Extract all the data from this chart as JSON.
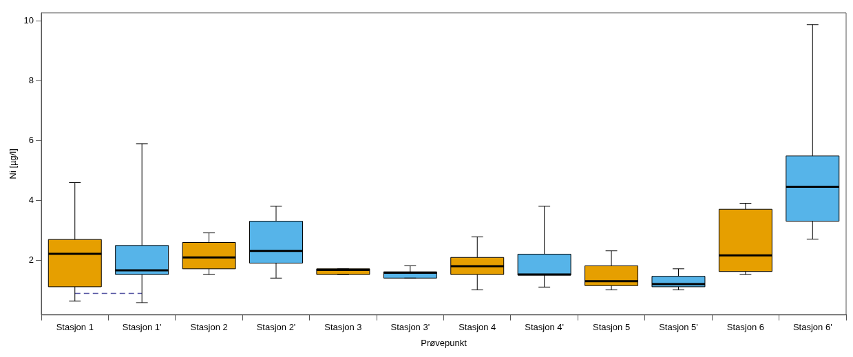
{
  "chart_data": {
    "type": "box",
    "xlabel": "Prøvepunkt",
    "ylabel": "Ni [µg/l]",
    "categories": [
      "Stasjon 1",
      "Stasjon 1'",
      "Stasjon 2",
      "Stasjon 2'",
      "Stasjon 3",
      "Stasjon 3'",
      "Stasjon 4",
      "Stasjon 4'",
      "Stasjon 5",
      "Stasjon 5'",
      "Stasjon 6",
      "Stasjon 6'"
    ],
    "series": [
      {
        "type": "box",
        "colors": [
          "#e69f00",
          "#56b4e9",
          "#e69f00",
          "#56b4e9",
          "#e69f00",
          "#56b4e9",
          "#e69f00",
          "#56b4e9",
          "#e69f00",
          "#56b4e9",
          "#e69f00",
          "#56b4e9"
        ],
        "boxes": [
          {
            "low": 0.64,
            "q1": 1.12,
            "median": 2.22,
            "q3": 2.7,
            "high": 4.6
          },
          {
            "low": 0.59,
            "q1": 1.53,
            "median": 1.67,
            "q3": 2.5,
            "high": 5.9
          },
          {
            "low": 1.53,
            "q1": 1.72,
            "median": 2.1,
            "q3": 2.6,
            "high": 2.92
          },
          {
            "low": 1.41,
            "q1": 1.91,
            "median": 2.32,
            "q3": 3.31,
            "high": 3.81
          },
          {
            "low": 1.53,
            "q1": 1.53,
            "median": 1.68,
            "q3": 1.72,
            "high": 1.72
          },
          {
            "low": 1.41,
            "q1": 1.41,
            "median": 1.59,
            "q3": 1.62,
            "high": 1.82
          },
          {
            "low": 1.02,
            "q1": 1.53,
            "median": 1.81,
            "q3": 2.1,
            "high": 2.79
          },
          {
            "low": 1.11,
            "q1": 1.51,
            "median": 1.53,
            "q3": 2.21,
            "high": 3.81
          },
          {
            "low": 1.02,
            "q1": 1.16,
            "median": 1.31,
            "q3": 1.82,
            "high": 2.32
          },
          {
            "low": 1.02,
            "q1": 1.12,
            "median": 1.21,
            "q3": 1.47,
            "high": 1.72
          },
          {
            "low": 1.53,
            "q1": 1.63,
            "median": 2.17,
            "q3": 3.71,
            "high": 3.91
          },
          {
            "low": 2.71,
            "q1": 3.31,
            "median": 4.46,
            "q3": 5.49,
            "high": 9.88
          }
        ]
      },
      {
        "type": "line",
        "color": "#5050a0",
        "line_style": "dashed",
        "marker": "none",
        "values": [
          0.9,
          0.9,
          null,
          null,
          null,
          null,
          null,
          null,
          null,
          null,
          null,
          null
        ]
      }
    ],
    "ylim": [
      0.18,
      10.27
    ],
    "yticks": [
      2,
      4,
      6,
      8,
      10
    ],
    "grid": false,
    "legend": false
  }
}
